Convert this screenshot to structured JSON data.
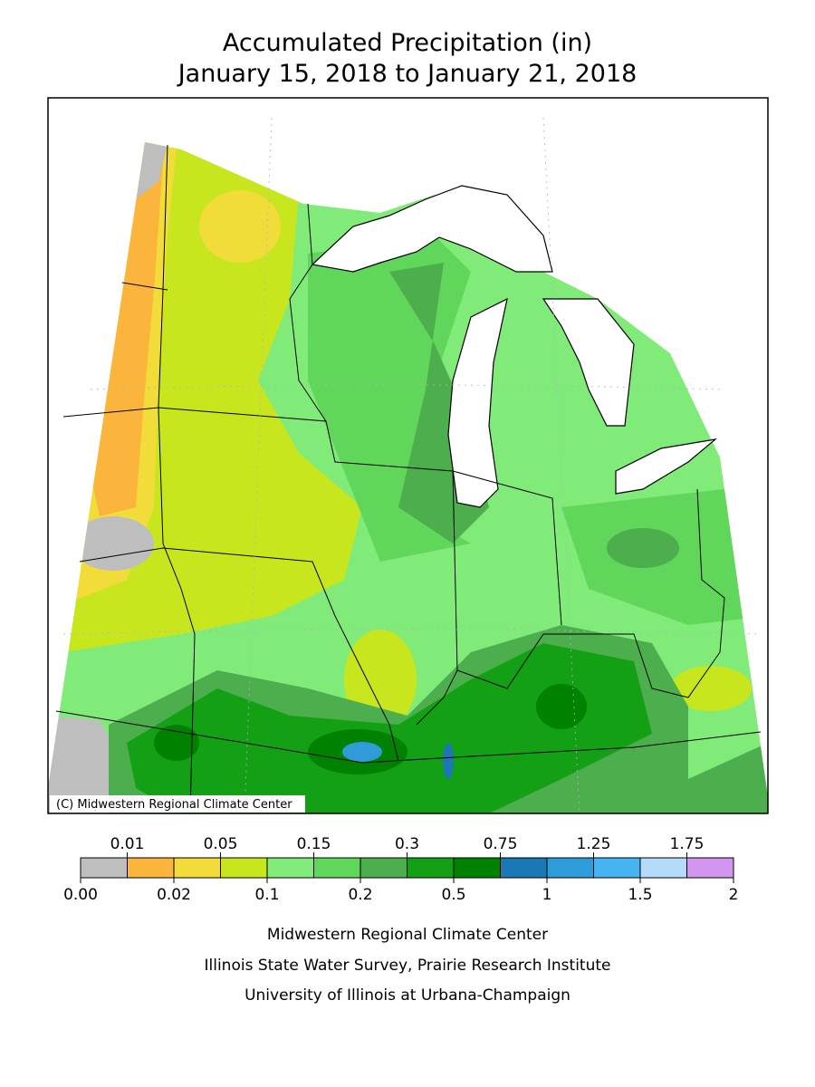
{
  "header": {
    "title": "Accumulated Precipitation (in)",
    "subtitle": "January 15, 2018 to January 21, 2018"
  },
  "map": {
    "copyright": "(C) Midwestern Regional Climate Center"
  },
  "legend": {
    "colors": [
      "#bebebe",
      "#fbb43c",
      "#f2dc3a",
      "#c8e61e",
      "#80eb78",
      "#60d65a",
      "#4cae4c",
      "#14a014",
      "#008200",
      "#1a78b4",
      "#2e9cd8",
      "#46b4f0",
      "#b4dcfa",
      "#d296f0"
    ],
    "labels": [
      "0.00",
      "0.01",
      "0.02",
      "0.05",
      "0.1",
      "0.15",
      "0.2",
      "0.3",
      "0.5",
      "0.75",
      "1",
      "1.25",
      "1.5",
      "1.75",
      "2"
    ]
  },
  "credits": [
    "Midwestern Regional Climate Center",
    "Illinois State Water Survey, Prairie Research Institute",
    "University of Illinois at Urbana-Champaign"
  ]
}
